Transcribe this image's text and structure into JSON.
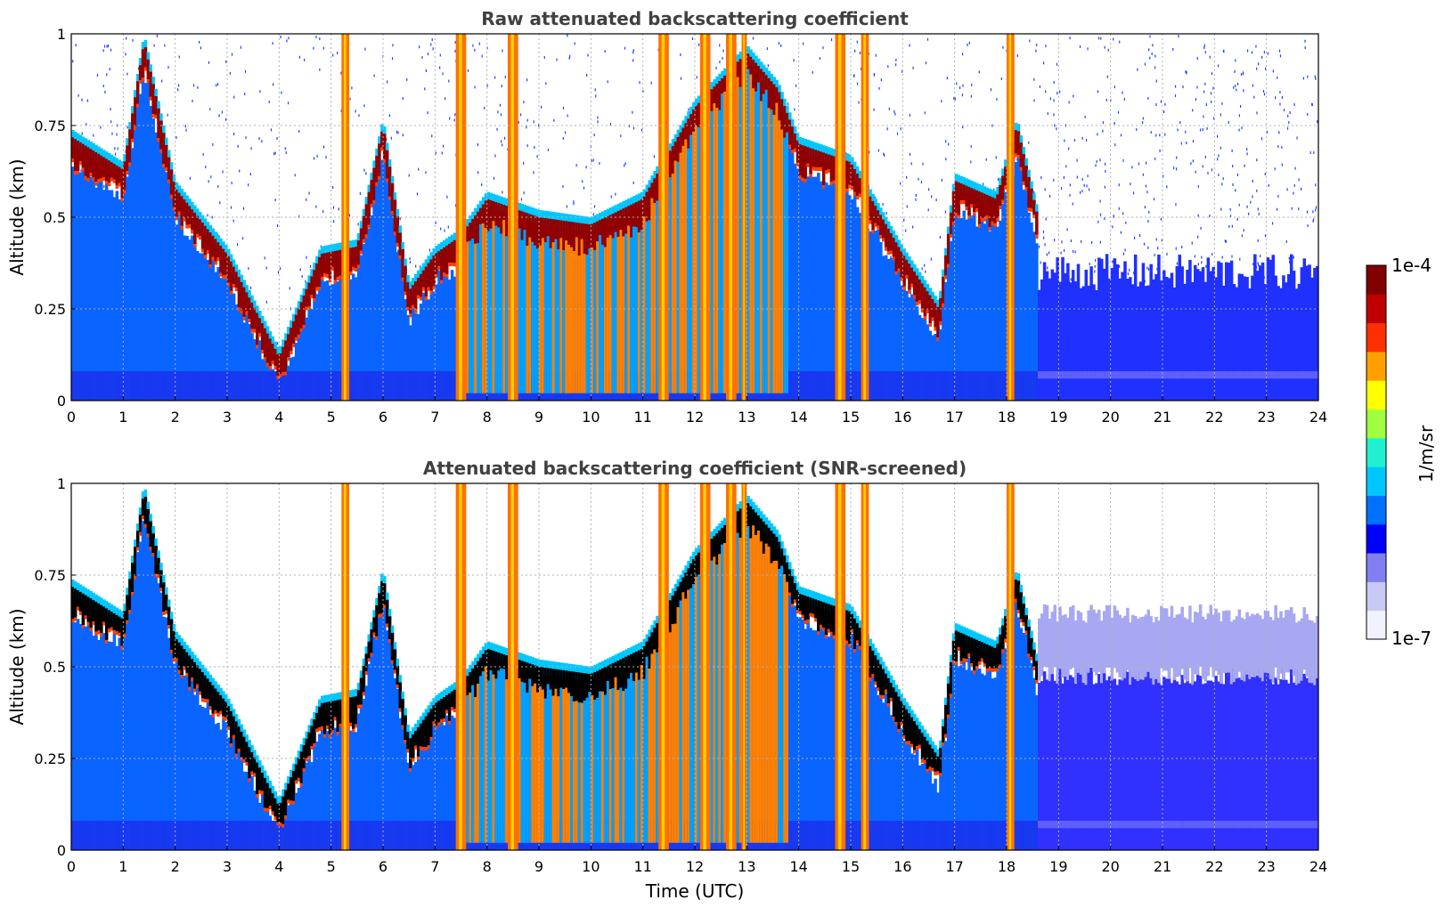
{
  "chart_data": [
    {
      "type": "heatmap",
      "title": "Raw attenuated backscattering coefficient",
      "xlabel": "",
      "ylabel": "Altitude (km)",
      "xlim": [
        0,
        24
      ],
      "ylim": [
        0,
        1
      ],
      "x_ticks": [
        "0",
        "1",
        "2",
        "3",
        "4",
        "5",
        "6",
        "7",
        "8",
        "9",
        "10",
        "11",
        "12",
        "13",
        "14",
        "15",
        "16",
        "17",
        "18",
        "19",
        "20",
        "21",
        "22",
        "23",
        "24"
      ],
      "y_ticks": [
        "0",
        "0.25",
        "0.5",
        "0.75",
        "1"
      ],
      "grid": true,
      "screened": false,
      "cloud_layer_top_km": [
        {
          "x": 0,
          "y": 0.72
        },
        {
          "x": 1,
          "y": 0.63
        },
        {
          "x": 1.4,
          "y": 0.98
        },
        {
          "x": 2,
          "y": 0.58
        },
        {
          "x": 3,
          "y": 0.4
        },
        {
          "x": 4,
          "y": 0.12
        },
        {
          "x": 4.8,
          "y": 0.4
        },
        {
          "x": 5.5,
          "y": 0.42
        },
        {
          "x": 6,
          "y": 0.75
        },
        {
          "x": 6.5,
          "y": 0.3
        },
        {
          "x": 7,
          "y": 0.4
        },
        {
          "x": 7.5,
          "y": 0.45
        },
        {
          "x": 8,
          "y": 0.55
        },
        {
          "x": 9,
          "y": 0.5
        },
        {
          "x": 10,
          "y": 0.48
        },
        {
          "x": 11,
          "y": 0.55
        },
        {
          "x": 12,
          "y": 0.8
        },
        {
          "x": 13,
          "y": 0.95
        },
        {
          "x": 13.6,
          "y": 0.85
        },
        {
          "x": 14,
          "y": 0.7
        },
        {
          "x": 15,
          "y": 0.65
        },
        {
          "x": 16,
          "y": 0.4
        },
        {
          "x": 16.7,
          "y": 0.25
        },
        {
          "x": 17,
          "y": 0.6
        },
        {
          "x": 17.8,
          "y": 0.55
        },
        {
          "x": 18.2,
          "y": 0.75
        },
        {
          "x": 18.6,
          "y": 0.5
        }
      ],
      "convective_columns_utc": [
        {
          "x0": 5.2,
          "x1": 5.35
        },
        {
          "x0": 7.4,
          "x1": 7.6
        },
        {
          "x0": 8.4,
          "x1": 8.6
        },
        {
          "x0": 11.3,
          "x1": 11.5
        },
        {
          "x0": 12.1,
          "x1": 12.3
        },
        {
          "x0": 12.6,
          "x1": 12.8
        },
        {
          "x0": 12.9,
          "x1": 13.0
        },
        {
          "x0": 14.7,
          "x1": 14.9
        },
        {
          "x0": 15.2,
          "x1": 15.35
        },
        {
          "x0": 18.0,
          "x1": 18.15
        }
      ]
    },
    {
      "type": "heatmap",
      "title": "Attenuated backscattering coefficient (SNR-screened)",
      "xlabel": "Time (UTC)",
      "ylabel": "Altitude (km)",
      "xlim": [
        0,
        24
      ],
      "ylim": [
        0,
        1
      ],
      "x_ticks": [
        "0",
        "1",
        "2",
        "3",
        "4",
        "5",
        "6",
        "7",
        "8",
        "9",
        "10",
        "11",
        "12",
        "13",
        "14",
        "15",
        "16",
        "17",
        "18",
        "19",
        "20",
        "21",
        "22",
        "23",
        "24"
      ],
      "y_ticks": [
        "0",
        "0.25",
        "0.5",
        "0.75",
        "1"
      ],
      "grid": true,
      "screened": true,
      "cloud_layer_top_km": [
        {
          "x": 0,
          "y": 0.72
        },
        {
          "x": 1,
          "y": 0.63
        },
        {
          "x": 1.4,
          "y": 0.98
        },
        {
          "x": 2,
          "y": 0.58
        },
        {
          "x": 3,
          "y": 0.4
        },
        {
          "x": 4,
          "y": 0.12
        },
        {
          "x": 4.8,
          "y": 0.4
        },
        {
          "x": 5.5,
          "y": 0.42
        },
        {
          "x": 6,
          "y": 0.75
        },
        {
          "x": 6.5,
          "y": 0.3
        },
        {
          "x": 7,
          "y": 0.4
        },
        {
          "x": 7.5,
          "y": 0.45
        },
        {
          "x": 8,
          "y": 0.55
        },
        {
          "x": 9,
          "y": 0.5
        },
        {
          "x": 10,
          "y": 0.48
        },
        {
          "x": 11,
          "y": 0.55
        },
        {
          "x": 12,
          "y": 0.8
        },
        {
          "x": 13,
          "y": 0.95
        },
        {
          "x": 13.6,
          "y": 0.85
        },
        {
          "x": 14,
          "y": 0.7
        },
        {
          "x": 15,
          "y": 0.65
        },
        {
          "x": 16,
          "y": 0.4
        },
        {
          "x": 16.7,
          "y": 0.25
        },
        {
          "x": 17,
          "y": 0.6
        },
        {
          "x": 17.8,
          "y": 0.55
        },
        {
          "x": 18.2,
          "y": 0.75
        },
        {
          "x": 18.6,
          "y": 0.5
        }
      ],
      "convective_columns_utc": [
        {
          "x0": 5.2,
          "x1": 5.35
        },
        {
          "x0": 7.4,
          "x1": 7.6
        },
        {
          "x0": 8.4,
          "x1": 8.6
        },
        {
          "x0": 11.3,
          "x1": 11.5
        },
        {
          "x0": 12.1,
          "x1": 12.3
        },
        {
          "x0": 12.6,
          "x1": 12.8
        },
        {
          "x0": 12.9,
          "x1": 13.0
        },
        {
          "x0": 14.7,
          "x1": 14.9
        },
        {
          "x0": 15.2,
          "x1": 15.35
        },
        {
          "x0": 18.0,
          "x1": 18.15
        }
      ]
    }
  ],
  "colorbar": {
    "label": "1/m/sr",
    "max_label": "1e-4",
    "min_label": "1e-7",
    "scale": "log",
    "colors": [
      "#f2f2fc",
      "#c8c8f5",
      "#8080f0",
      "#0000ff",
      "#0070ff",
      "#00c8ff",
      "#20f0d0",
      "#a0ff40",
      "#ffff00",
      "#ffa000",
      "#ff3000",
      "#c00000",
      "#800000"
    ]
  },
  "colors": {
    "ground_noise": "#1838f0",
    "sky_noise": "#2040ff",
    "boundary_layer": "#0a64ff",
    "cloud_core": "#900000",
    "cloud_edge": "#ff4000",
    "screened_core": "#000000",
    "screened_haze": "#a8a8f2"
  }
}
